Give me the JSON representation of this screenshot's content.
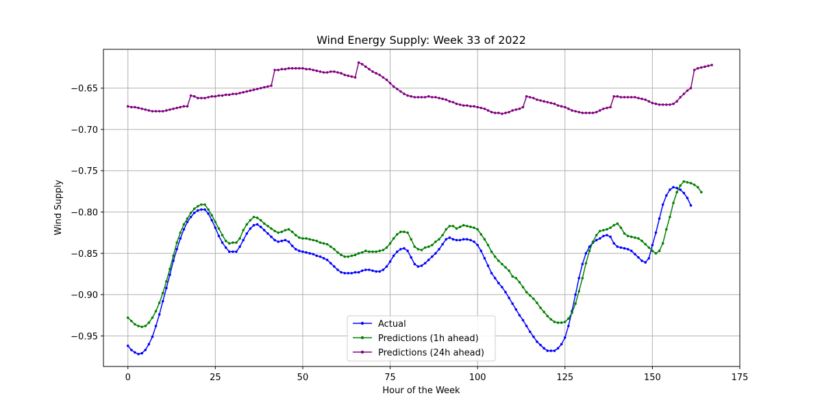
{
  "chart_data": {
    "type": "line",
    "title": "Wind Energy Supply: Week 33 of 2022",
    "xlabel": "Hour of the Week",
    "ylabel": "Wind Supply",
    "xlim": [
      -7,
      175
    ],
    "ylim": [
      -0.987,
      -0.603
    ],
    "xticks": [
      0,
      25,
      50,
      75,
      100,
      125,
      150,
      175
    ],
    "xtick_labels": [
      "0",
      "25",
      "50",
      "75",
      "100",
      "125",
      "150",
      "175"
    ],
    "yticks": [
      -0.95,
      -0.9,
      -0.85,
      -0.8,
      -0.75,
      -0.7,
      -0.65
    ],
    "ytick_labels": [
      "−0.95",
      "−0.90",
      "−0.85",
      "−0.80",
      "−0.75",
      "−0.70",
      "−0.65"
    ],
    "grid": true,
    "legend_position": "bottom-center",
    "series": [
      {
        "name": "Actual",
        "color": "#0000ff",
        "x_start": 0,
        "values": [
          -0.962,
          -0.967,
          -0.97,
          -0.972,
          -0.971,
          -0.967,
          -0.96,
          -0.951,
          -0.938,
          -0.924,
          -0.908,
          -0.892,
          -0.876,
          -0.859,
          -0.845,
          -0.832,
          -0.821,
          -0.812,
          -0.806,
          -0.801,
          -0.798,
          -0.797,
          -0.797,
          -0.802,
          -0.81,
          -0.819,
          -0.829,
          -0.837,
          -0.843,
          -0.848,
          -0.848,
          -0.848,
          -0.842,
          -0.834,
          -0.826,
          -0.82,
          -0.816,
          -0.815,
          -0.818,
          -0.822,
          -0.826,
          -0.83,
          -0.834,
          -0.836,
          -0.835,
          -0.834,
          -0.836,
          -0.841,
          -0.845,
          -0.847,
          -0.848,
          -0.849,
          -0.85,
          -0.851,
          -0.853,
          -0.854,
          -0.856,
          -0.858,
          -0.862,
          -0.866,
          -0.87,
          -0.873,
          -0.874,
          -0.874,
          -0.874,
          -0.873,
          -0.873,
          -0.871,
          -0.87,
          -0.87,
          -0.871,
          -0.872,
          -0.872,
          -0.87,
          -0.866,
          -0.86,
          -0.853,
          -0.848,
          -0.845,
          -0.844,
          -0.847,
          -0.855,
          -0.863,
          -0.866,
          -0.865,
          -0.862,
          -0.858,
          -0.854,
          -0.85,
          -0.845,
          -0.839,
          -0.833,
          -0.831,
          -0.833,
          -0.834,
          -0.834,
          -0.833,
          -0.833,
          -0.834,
          -0.836,
          -0.84,
          -0.847,
          -0.856,
          -0.865,
          -0.874,
          -0.88,
          -0.886,
          -0.891,
          -0.897,
          -0.904,
          -0.911,
          -0.918,
          -0.925,
          -0.931,
          -0.938,
          -0.945,
          -0.951,
          -0.957,
          -0.961,
          -0.965,
          -0.968,
          -0.968,
          -0.968,
          -0.965,
          -0.96,
          -0.952,
          -0.938,
          -0.92,
          -0.9,
          -0.88,
          -0.863,
          -0.85,
          -0.842,
          -0.837,
          -0.834,
          -0.832,
          -0.829,
          -0.828,
          -0.83,
          -0.838,
          -0.842,
          -0.843,
          -0.844,
          -0.845,
          -0.847,
          -0.851,
          -0.855,
          -0.859,
          -0.861,
          -0.856,
          -0.84,
          -0.825,
          -0.808,
          -0.791,
          -0.78,
          -0.773,
          -0.77,
          -0.771,
          -0.773,
          -0.777,
          -0.783,
          -0.792
        ]
      },
      {
        "name": "Predictions (1h ahead)",
        "color": "#008000",
        "x_start": 0,
        "values": [
          -0.928,
          -0.932,
          -0.936,
          -0.938,
          -0.939,
          -0.938,
          -0.934,
          -0.928,
          -0.92,
          -0.91,
          -0.898,
          -0.884,
          -0.869,
          -0.853,
          -0.837,
          -0.825,
          -0.815,
          -0.808,
          -0.801,
          -0.796,
          -0.793,
          -0.791,
          -0.791,
          -0.797,
          -0.804,
          -0.812,
          -0.82,
          -0.828,
          -0.835,
          -0.838,
          -0.837,
          -0.837,
          -0.832,
          -0.822,
          -0.815,
          -0.81,
          -0.806,
          -0.807,
          -0.81,
          -0.814,
          -0.817,
          -0.82,
          -0.823,
          -0.825,
          -0.824,
          -0.822,
          -0.821,
          -0.824,
          -0.828,
          -0.831,
          -0.832,
          -0.832,
          -0.833,
          -0.834,
          -0.835,
          -0.837,
          -0.838,
          -0.839,
          -0.842,
          -0.845,
          -0.849,
          -0.852,
          -0.854,
          -0.854,
          -0.853,
          -0.852,
          -0.85,
          -0.849,
          -0.847,
          -0.848,
          -0.848,
          -0.848,
          -0.847,
          -0.846,
          -0.843,
          -0.838,
          -0.832,
          -0.827,
          -0.824,
          -0.824,
          -0.825,
          -0.833,
          -0.842,
          -0.845,
          -0.846,
          -0.843,
          -0.842,
          -0.84,
          -0.836,
          -0.833,
          -0.828,
          -0.821,
          -0.817,
          -0.817,
          -0.82,
          -0.818,
          -0.816,
          -0.817,
          -0.818,
          -0.819,
          -0.821,
          -0.827,
          -0.833,
          -0.84,
          -0.848,
          -0.854,
          -0.859,
          -0.863,
          -0.867,
          -0.871,
          -0.878,
          -0.88,
          -0.885,
          -0.891,
          -0.897,
          -0.901,
          -0.905,
          -0.91,
          -0.916,
          -0.921,
          -0.926,
          -0.93,
          -0.933,
          -0.934,
          -0.934,
          -0.933,
          -0.929,
          -0.922,
          -0.911,
          -0.896,
          -0.88,
          -0.862,
          -0.847,
          -0.836,
          -0.828,
          -0.823,
          -0.822,
          -0.821,
          -0.819,
          -0.816,
          -0.814,
          -0.819,
          -0.826,
          -0.829,
          -0.83,
          -0.831,
          -0.832,
          -0.835,
          -0.839,
          -0.843,
          -0.847,
          -0.85,
          -0.847,
          -0.838,
          -0.821,
          -0.806,
          -0.789,
          -0.776,
          -0.768,
          -0.763,
          -0.764,
          -0.765,
          -0.767,
          -0.77,
          -0.776
        ]
      },
      {
        "name": "Predictions (24h ahead)",
        "color": "#800080",
        "x_start": 0,
        "values": [
          -0.672,
          -0.673,
          -0.673,
          -0.674,
          -0.675,
          -0.676,
          -0.677,
          -0.678,
          -0.678,
          -0.678,
          -0.678,
          -0.677,
          -0.676,
          -0.675,
          -0.674,
          -0.673,
          -0.672,
          -0.672,
          -0.659,
          -0.66,
          -0.662,
          -0.662,
          -0.662,
          -0.661,
          -0.66,
          -0.66,
          -0.659,
          -0.659,
          -0.658,
          -0.658,
          -0.657,
          -0.657,
          -0.656,
          -0.655,
          -0.654,
          -0.653,
          -0.652,
          -0.651,
          -0.65,
          -0.649,
          -0.648,
          -0.647,
          -0.628,
          -0.628,
          -0.627,
          -0.627,
          -0.626,
          -0.626,
          -0.626,
          -0.626,
          -0.626,
          -0.627,
          -0.627,
          -0.628,
          -0.629,
          -0.63,
          -0.631,
          -0.631,
          -0.63,
          -0.63,
          -0.631,
          -0.632,
          -0.634,
          -0.635,
          -0.636,
          -0.637,
          -0.619,
          -0.621,
          -0.624,
          -0.627,
          -0.63,
          -0.632,
          -0.634,
          -0.637,
          -0.64,
          -0.644,
          -0.648,
          -0.651,
          -0.654,
          -0.657,
          -0.659,
          -0.66,
          -0.661,
          -0.661,
          -0.661,
          -0.661,
          -0.66,
          -0.661,
          -0.661,
          -0.662,
          -0.663,
          -0.664,
          -0.666,
          -0.667,
          -0.669,
          -0.67,
          -0.671,
          -0.671,
          -0.672,
          -0.672,
          -0.673,
          -0.674,
          -0.675,
          -0.677,
          -0.679,
          -0.68,
          -0.68,
          -0.681,
          -0.68,
          -0.679,
          -0.677,
          -0.676,
          -0.675,
          -0.673,
          -0.66,
          -0.661,
          -0.662,
          -0.664,
          -0.665,
          -0.666,
          -0.667,
          -0.668,
          -0.669,
          -0.671,
          -0.672,
          -0.673,
          -0.675,
          -0.677,
          -0.678,
          -0.679,
          -0.68,
          -0.68,
          -0.68,
          -0.68,
          -0.679,
          -0.677,
          -0.675,
          -0.674,
          -0.673,
          -0.66,
          -0.66,
          -0.661,
          -0.661,
          -0.661,
          -0.661,
          -0.661,
          -0.662,
          -0.663,
          -0.664,
          -0.666,
          -0.668,
          -0.669,
          -0.67,
          -0.67,
          -0.67,
          -0.67,
          -0.669,
          -0.666,
          -0.661,
          -0.657,
          -0.653,
          -0.65,
          -0.628,
          -0.626,
          -0.625,
          -0.624,
          -0.623,
          -0.622
        ]
      }
    ]
  }
}
